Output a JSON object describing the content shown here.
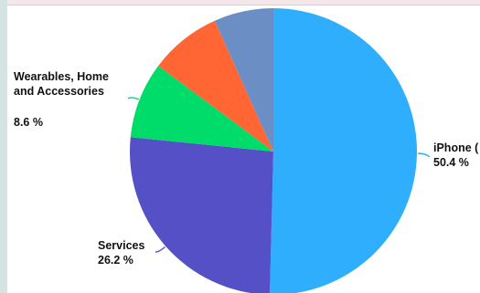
{
  "chart_data": {
    "type": "pie",
    "title": "",
    "slices": [
      {
        "label": "iPhone (partially cut off)",
        "value": 50.4,
        "value_text": "50.4 %",
        "color": "#2eaefc"
      },
      {
        "label": "Services",
        "value": 26.2,
        "value_text": "26.2 %",
        "color": "#5550c6"
      },
      {
        "label": "Wearables, Home and Accessories",
        "value": 8.6,
        "value_text": "8.6 %",
        "color": "#00dc6a"
      },
      {
        "label": "",
        "value": 8.1,
        "value_text": "",
        "color": "#ff6633"
      },
      {
        "label": "",
        "value": 6.7,
        "value_text": "",
        "color": "#6b8fc5"
      }
    ],
    "label_texts": {
      "iphone": "iPhone (",
      "services": "Services",
      "wearables_line1": "Wearables, Home",
      "wearables_line2": "and Accessories"
    },
    "start_angle": "12 o'clock",
    "direction": "clockwise",
    "legend": "none"
  }
}
